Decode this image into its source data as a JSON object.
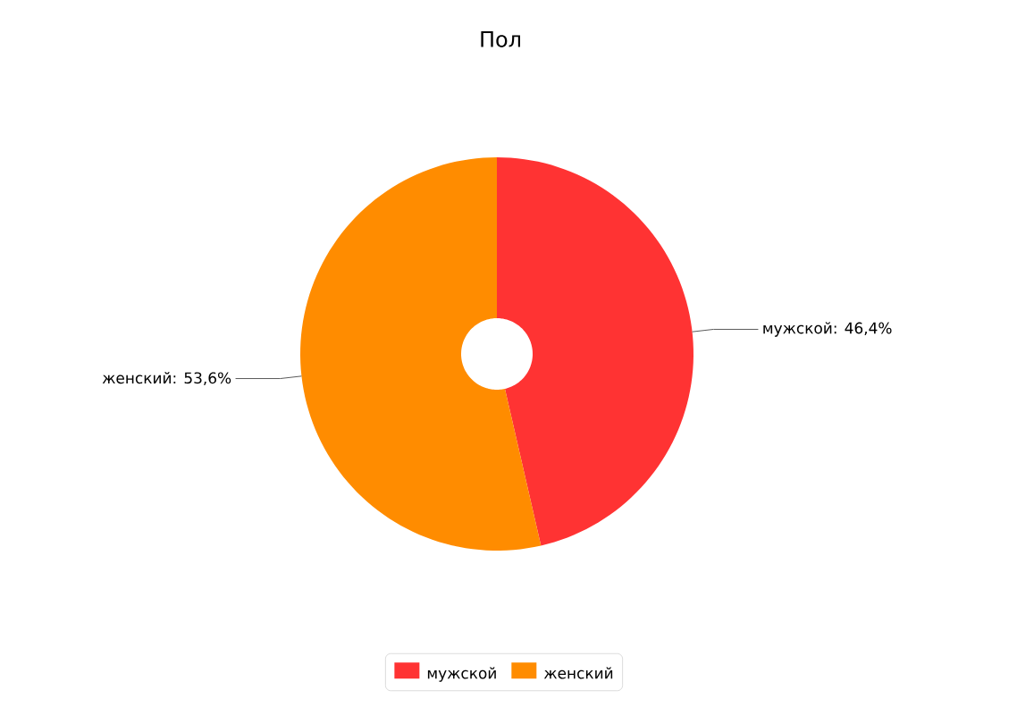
{
  "chart_data": {
    "type": "donut",
    "title": "Пол",
    "categories": [
      "мужской",
      "женский"
    ],
    "values": [
      46.4,
      53.6
    ],
    "colors": [
      "#ff3333",
      "#ff8c00"
    ],
    "value_labels": [
      "мужской: 46,4%",
      "женский: 53,6%"
    ],
    "legend": "bottom"
  }
}
